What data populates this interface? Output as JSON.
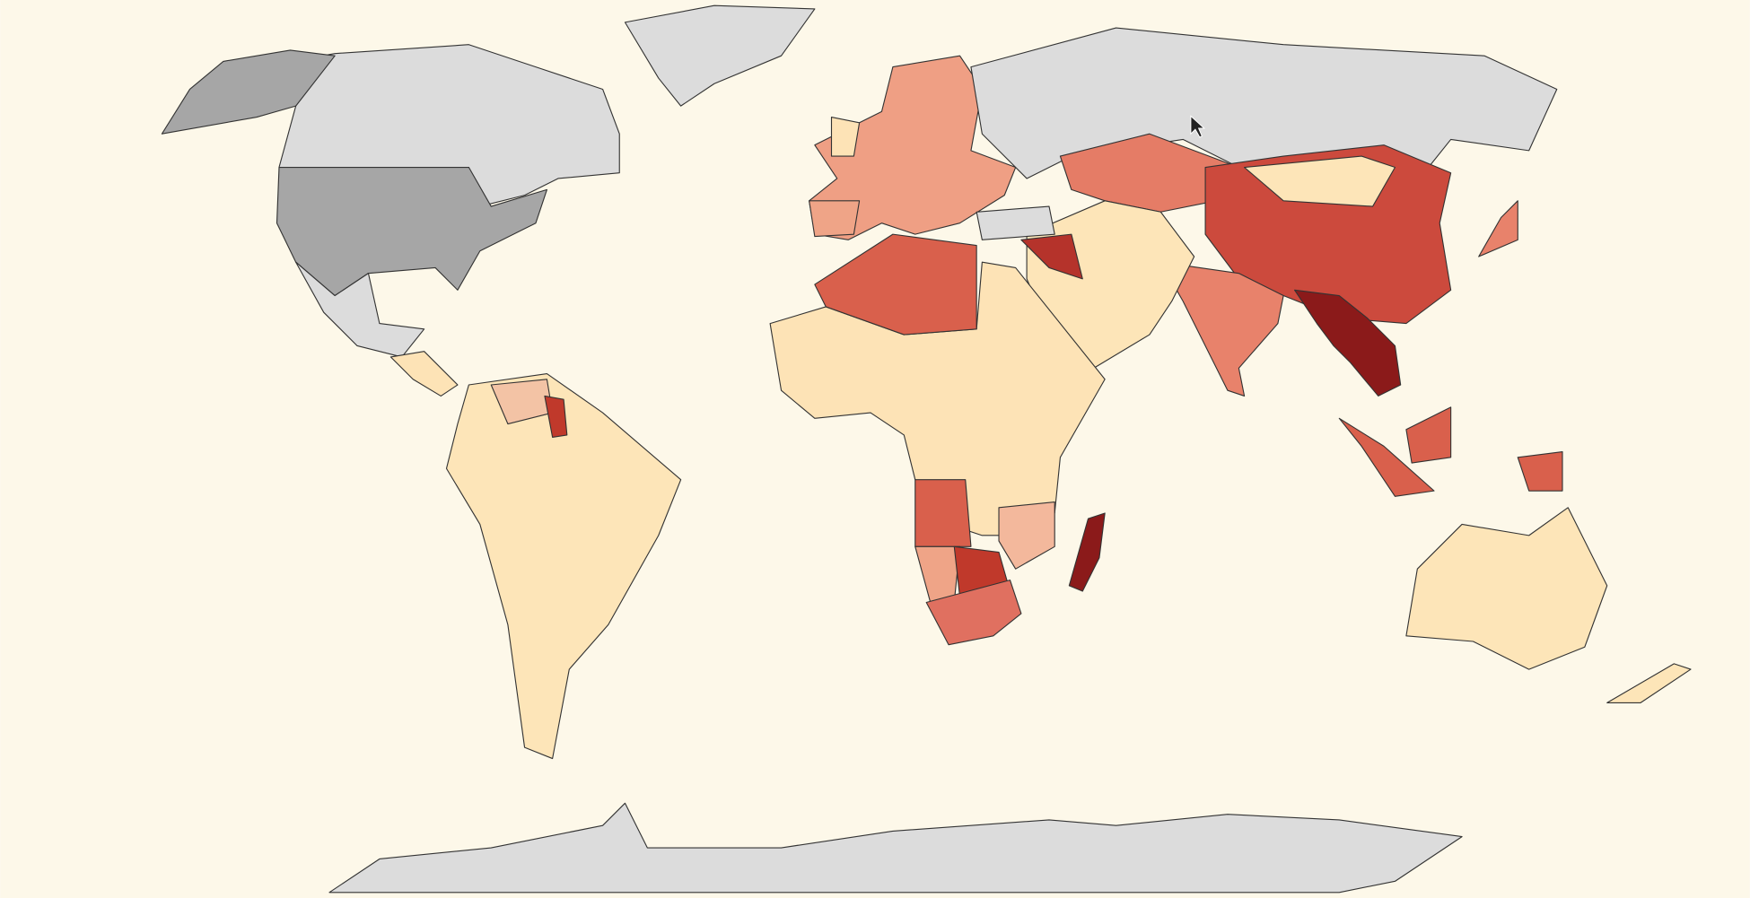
{
  "map": {
    "background": "#fdf8e9",
    "border_color": "#333333",
    "regions": [
      {
        "color": "#dcdcdc"
      },
      {
        "color": "#dcdcdc"
      },
      {
        "color": "#a6a6a6"
      },
      {
        "color": "#a6a6a6"
      },
      {
        "color": "#dcdcdc"
      },
      {
        "color": "#fde3b6"
      },
      {
        "color": "#fde5b8"
      },
      {
        "color": "#f3c3a5"
      },
      {
        "color": "#c0392b"
      },
      {
        "color": "#ef9f84"
      },
      {
        "color": "#efa487"
      },
      {
        "color": "#fde3b6"
      },
      {
        "color": "#dcdcdc"
      },
      {
        "color": "#e57c66"
      },
      {
        "color": "#cc4a3d"
      },
      {
        "color": "#fde5b8"
      },
      {
        "color": "#e8826b"
      },
      {
        "color": "#8b1a1a"
      },
      {
        "color": "#fde5b8"
      },
      {
        "color": "#b5332b"
      },
      {
        "color": "#dcdcdc"
      },
      {
        "color": "#fde3b6"
      },
      {
        "color": "#d9604c"
      },
      {
        "color": "#d9604c"
      },
      {
        "color": "#efa487"
      },
      {
        "color": "#c0392b"
      },
      {
        "color": "#e07060"
      },
      {
        "color": "#8b1a1a"
      },
      {
        "color": "#f3b89c"
      },
      {
        "color": "#d9604c"
      },
      {
        "color": "#d9604c"
      },
      {
        "color": "#d9604c"
      },
      {
        "color": "#e8826b"
      },
      {
        "color": "#fde5b8"
      },
      {
        "color": "#fde5b8"
      },
      {
        "color": "#dcdcdc"
      }
    ]
  }
}
